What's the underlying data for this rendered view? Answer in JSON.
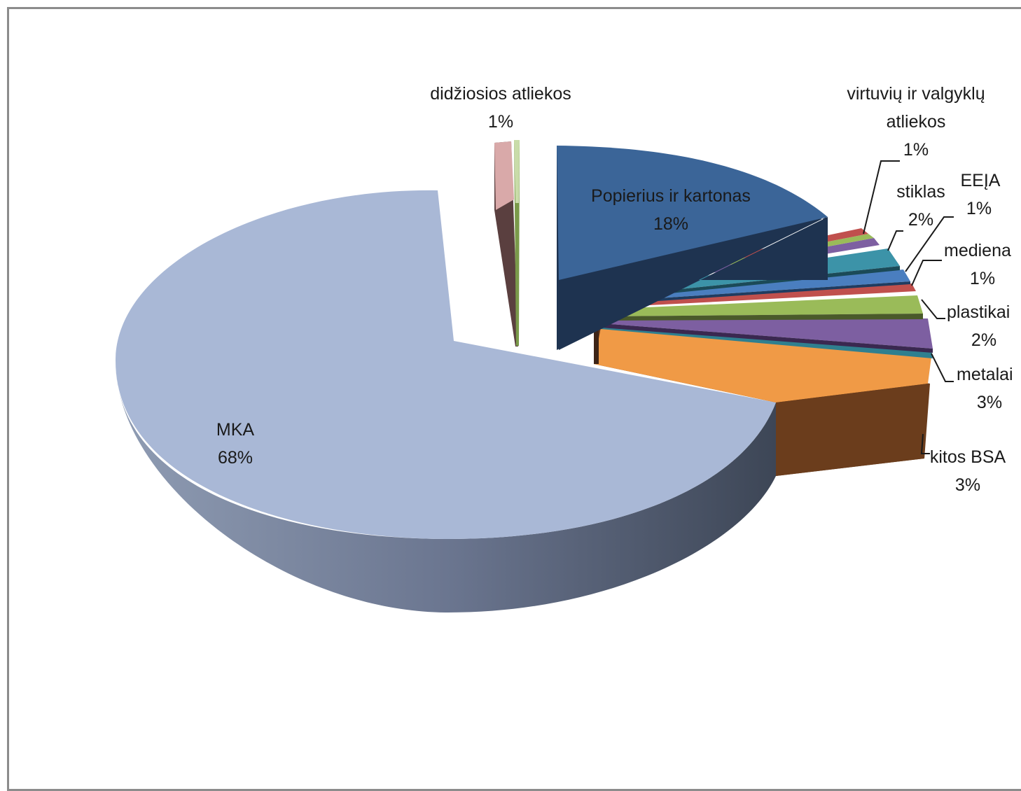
{
  "chart_data": {
    "type": "pie",
    "style": "3d-exploded",
    "categories": [
      "Popierius ir kartonas",
      "virtuvių ir valgyklų atliekos",
      "stiklas",
      "EEĮA",
      "mediena",
      "plastikai",
      "metalai",
      "kitos BSA",
      "MKA",
      "didžiosios atliekos"
    ],
    "values": [
      18,
      1,
      2,
      1,
      1,
      2,
      3,
      3,
      68,
      1
    ],
    "labels": [
      {
        "name": "Popierius ir kartonas",
        "pct": "18%"
      },
      {
        "name_line1": "virtuvių ir valgyklų",
        "name_line2": "atliekos",
        "pct": "1%"
      },
      {
        "name": "stiklas",
        "pct": "2%"
      },
      {
        "name": "EEĮA",
        "pct": "1%"
      },
      {
        "name": "mediena",
        "pct": "1%"
      },
      {
        "name": "plastikai",
        "pct": "2%"
      },
      {
        "name": "metalai",
        "pct": "3%"
      },
      {
        "name": "kitos BSA",
        "pct": "3%"
      },
      {
        "name": "MKA",
        "pct": "68%"
      },
      {
        "name": "didžiosios atliekos",
        "pct": "1%"
      }
    ],
    "colors": {
      "paper": "#3b6598",
      "mka": "#a9b8d6",
      "kitos": "#f09a46",
      "metalai": "#7d5fa1",
      "plastikai": "#9abb59",
      "mediena": "#c0504d",
      "eeja": "#4a7ebf",
      "stiklas": "#3c93a8",
      "virtuviu": "#c0504d",
      "didziosios": "#d9a9a9"
    }
  }
}
